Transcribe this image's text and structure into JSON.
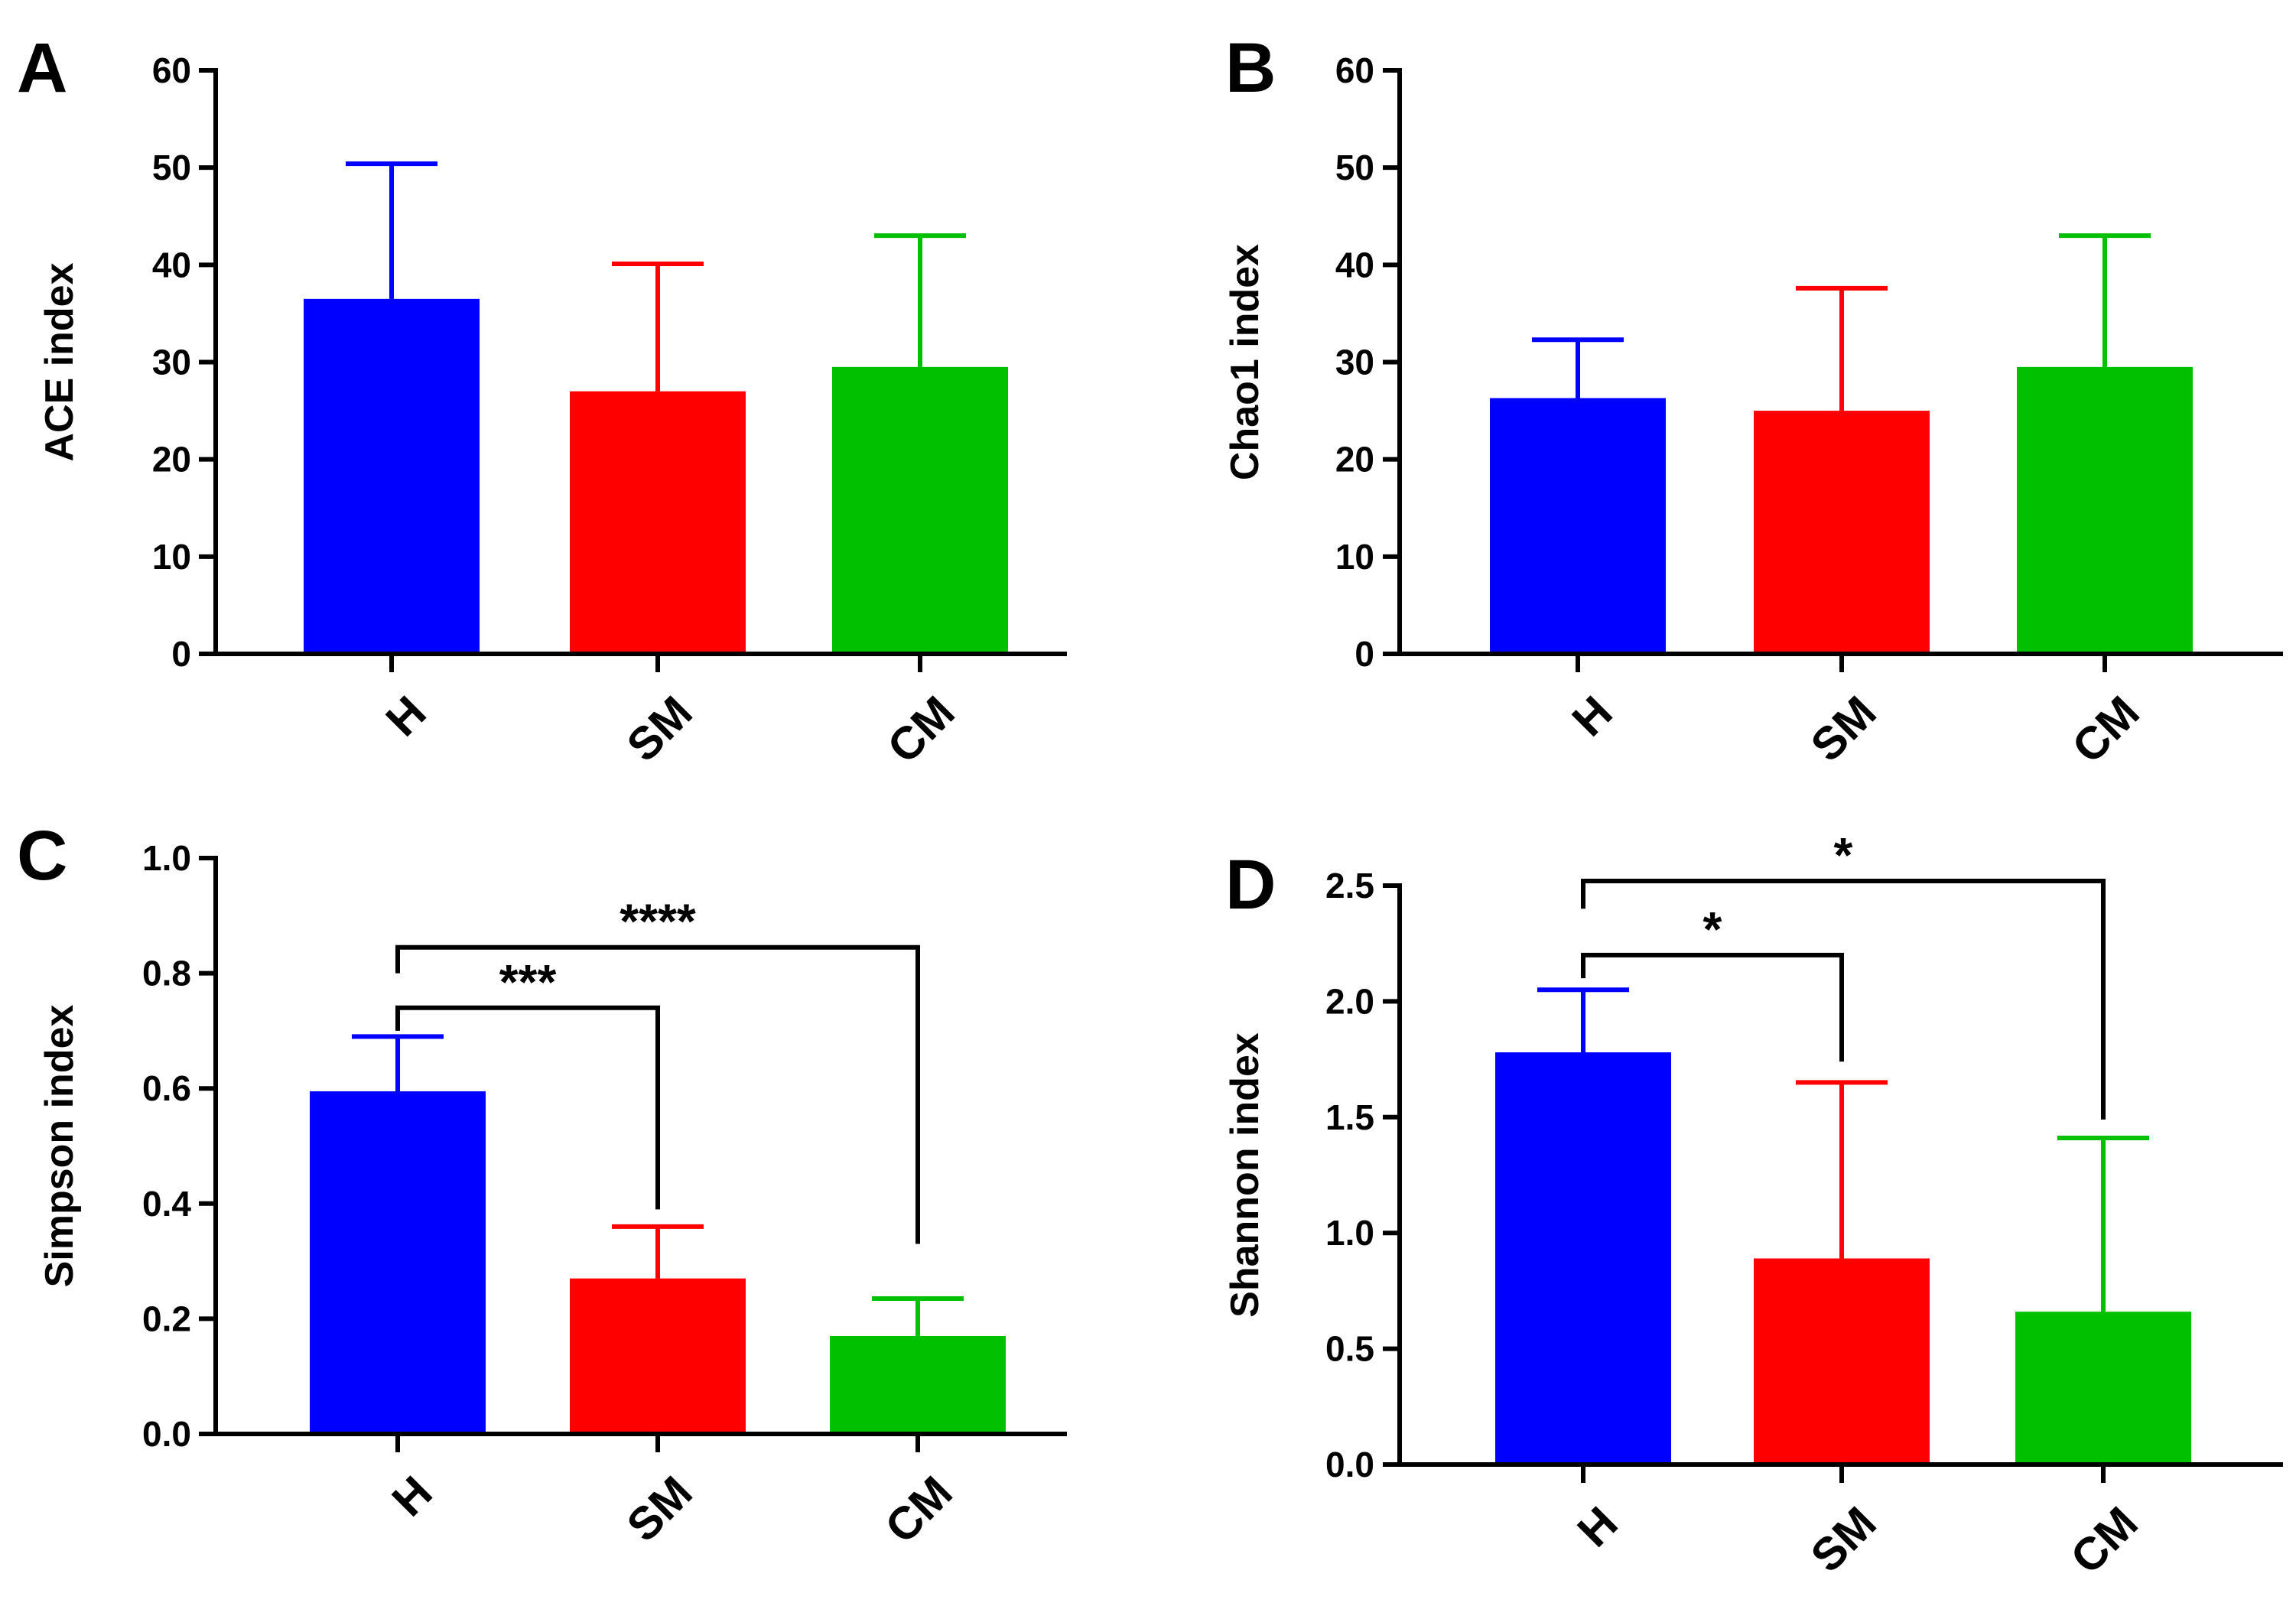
{
  "chart_data": [
    {
      "type": "bar",
      "panel": "A",
      "ylabel": "ACE index",
      "categories": [
        "H",
        "SM",
        "CM"
      ],
      "values": [
        36.5,
        27.0,
        29.5
      ],
      "errors": [
        13.9,
        13.1,
        13.5
      ],
      "colors": [
        "#0000FF",
        "#FF0000",
        "#00C000"
      ],
      "ylim": [
        0,
        60
      ],
      "yticks": [
        0,
        10,
        20,
        30,
        40,
        50,
        60
      ],
      "ytick_labels": [
        "0",
        "10",
        "20",
        "30",
        "40",
        "50",
        "60"
      ],
      "significance": []
    },
    {
      "type": "bar",
      "panel": "B",
      "ylabel": "Chao1 index",
      "categories": [
        "H",
        "SM",
        "CM"
      ],
      "values": [
        26.3,
        25.0,
        29.5
      ],
      "errors": [
        6.0,
        12.6,
        13.5
      ],
      "colors": [
        "#0000FF",
        "#FF0000",
        "#00C000"
      ],
      "ylim": [
        0,
        60
      ],
      "yticks": [
        0,
        10,
        20,
        30,
        40,
        50,
        60
      ],
      "ytick_labels": [
        "0",
        "10",
        "20",
        "30",
        "40",
        "50",
        "60"
      ],
      "significance": []
    },
    {
      "type": "bar",
      "panel": "C",
      "ylabel": "Simpson index",
      "categories": [
        "H",
        "SM",
        "CM"
      ],
      "values": [
        0.595,
        0.27,
        0.17
      ],
      "errors": [
        0.095,
        0.09,
        0.065
      ],
      "colors": [
        "#0000FF",
        "#FF0000",
        "#00C000"
      ],
      "ylim": [
        0,
        1.0
      ],
      "yticks": [
        0,
        0.2,
        0.4,
        0.6,
        0.8,
        1.0
      ],
      "ytick_labels": [
        "0.0",
        "0.2",
        "0.4",
        "0.6",
        "0.8",
        "1.0"
      ],
      "significance": [
        {
          "from": 0,
          "to": 1,
          "label": "***",
          "bracket_y": 0.74,
          "left_drop": 0.7,
          "right_drop": 0.39
        },
        {
          "from": 0,
          "to": 2,
          "label": "****",
          "bracket_y": 0.845,
          "left_drop": 0.8,
          "right_drop": 0.33
        }
      ]
    },
    {
      "type": "bar",
      "panel": "D",
      "ylabel": "Shannon index",
      "categories": [
        "H",
        "SM",
        "CM"
      ],
      "values": [
        1.78,
        0.89,
        0.66
      ],
      "errors": [
        0.27,
        0.76,
        0.75
      ],
      "colors": [
        "#0000FF",
        "#FF0000",
        "#00C000"
      ],
      "ylim": [
        0,
        2.5
      ],
      "yticks": [
        0,
        0.5,
        1.0,
        1.5,
        2.0,
        2.5
      ],
      "ytick_labels": [
        "0.0",
        "0.5",
        "1.0",
        "1.5",
        "2.0",
        "2.5"
      ],
      "significance": [
        {
          "from": 0,
          "to": 1,
          "label": "*",
          "bracket_y": 2.2,
          "left_drop": 2.1,
          "right_drop": 1.74
        },
        {
          "from": 0,
          "to": 2,
          "label": "*",
          "bracket_y": 2.52,
          "left_drop": 2.4,
          "right_drop": 1.49
        }
      ]
    }
  ]
}
